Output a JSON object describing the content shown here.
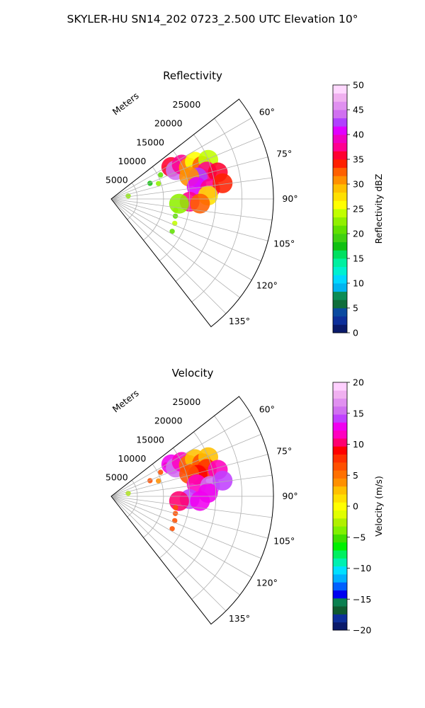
{
  "figure": {
    "title": "SKYLER-HU  SN14_202  0723_2.500 UTC Elevation 10°"
  },
  "chart_data": [
    {
      "type": "heatmap",
      "projection": "polar-sector",
      "title": "Reflectivity",
      "range_label": "Meters",
      "range_ticks": [
        5000,
        10000,
        15000,
        20000,
        25000
      ],
      "rlim": [
        0,
        31000
      ],
      "azimuth_range_deg": [
        52,
        142
      ],
      "azimuth_ticks": [
        "60°",
        "75°",
        "90°",
        "105°",
        "120°",
        "135°"
      ],
      "grid": true,
      "colorbar": {
        "label": "Reflectivity dBZ",
        "range": [
          0,
          50
        ],
        "ticks": [
          "0",
          "5",
          "10",
          "15",
          "20",
          "25",
          "30",
          "35",
          "40",
          "45",
          "50"
        ],
        "colors": [
          "#0a1a6a",
          "#0d2f9a",
          "#0a4aa0",
          "#0f6d3a",
          "#0c8c55",
          "#00b4f0",
          "#00d8ff",
          "#00f0d0",
          "#00f0a0",
          "#00e060",
          "#10c010",
          "#40d010",
          "#60e000",
          "#90f000",
          "#c0ff00",
          "#ffff00",
          "#ffe000",
          "#ffc000",
          "#ff9000",
          "#ff6000",
          "#ff2000",
          "#ff0030",
          "#ff0090",
          "#f000c0",
          "#e000ff",
          "#b040ff",
          "#d070f0",
          "#e090f0",
          "#f0b0f0",
          "#ffd8ff"
        ]
      },
      "echoes": [
        {
          "r": 12000,
          "az": 60,
          "v": 28
        },
        {
          "r": 13000,
          "az": 62,
          "v": 36
        },
        {
          "r": 13500,
          "az": 66,
          "v": 44
        },
        {
          "r": 15000,
          "az": 64,
          "v": 38
        },
        {
          "r": 16000,
          "az": 68,
          "v": 31
        },
        {
          "r": 17500,
          "az": 66,
          "v": 26
        },
        {
          "r": 18500,
          "az": 70,
          "v": 33
        },
        {
          "r": 20000,
          "az": 68,
          "v": 24
        },
        {
          "r": 19000,
          "az": 74,
          "v": 38
        },
        {
          "r": 21000,
          "az": 76,
          "v": 36
        },
        {
          "r": 17000,
          "az": 76,
          "v": 42
        },
        {
          "r": 15500,
          "az": 74,
          "v": 30
        },
        {
          "r": 16500,
          "az": 82,
          "v": 40
        },
        {
          "r": 19000,
          "az": 84,
          "v": 37
        },
        {
          "r": 21500,
          "az": 82,
          "v": 34
        },
        {
          "r": 18500,
          "az": 88,
          "v": 28
        },
        {
          "r": 15000,
          "az": 92,
          "v": 38
        },
        {
          "r": 17000,
          "az": 93,
          "v": 33
        },
        {
          "r": 13000,
          "az": 94,
          "v": 22
        },
        {
          "r": 8000,
          "az": 68,
          "v": 18
        },
        {
          "r": 9500,
          "az": 72,
          "v": 22
        },
        {
          "r": 10500,
          "az": 64,
          "v": 20
        },
        {
          "r": 3300,
          "az": 80,
          "v": 22
        },
        {
          "r": 12500,
          "az": 100,
          "v": 22
        },
        {
          "r": 12700,
          "az": 105,
          "v": 20
        },
        {
          "r": 13000,
          "az": 111,
          "v": 24
        },
        {
          "r": 13200,
          "az": 118,
          "v": 20
        }
      ]
    },
    {
      "type": "heatmap",
      "projection": "polar-sector",
      "title": "Velocity",
      "range_label": "Meters",
      "range_ticks": [
        5000,
        10000,
        15000,
        20000,
        25000
      ],
      "rlim": [
        0,
        31000
      ],
      "azimuth_range_deg": [
        52,
        142
      ],
      "azimuth_ticks": [
        "60°",
        "75°",
        "90°",
        "105°",
        "120°",
        "135°"
      ],
      "grid": true,
      "colorbar": {
        "label": "Velocity (m/s)",
        "range": [
          -20,
          20
        ],
        "ticks": [
          "−20",
          "−15",
          "−10",
          "−5",
          "0",
          "5",
          "10",
          "15",
          "20"
        ],
        "colors": [
          "#0a1a6a",
          "#0d2f9a",
          "#0f5a30",
          "#0a8050",
          "#0000f0",
          "#0060ff",
          "#00b0ff",
          "#00e0ff",
          "#00f0b0",
          "#00f060",
          "#00f000",
          "#40e000",
          "#80f000",
          "#b0f000",
          "#e0ff00",
          "#ffff00",
          "#ffe000",
          "#ffc000",
          "#ff9000",
          "#ff7000",
          "#ff5000",
          "#ff3000",
          "#ff0000",
          "#ff0070",
          "#ff00c0",
          "#f000f0",
          "#c040ff",
          "#d070f0",
          "#e090f0",
          "#f0b0f0",
          "#ffd0ff"
        ]
      },
      "echoes": [
        {
          "r": 12000,
          "az": 60,
          "v": 9
        },
        {
          "r": 13000,
          "az": 62,
          "v": 13
        },
        {
          "r": 13500,
          "az": 66,
          "v": 15
        },
        {
          "r": 15000,
          "az": 64,
          "v": 11
        },
        {
          "r": 16000,
          "az": 68,
          "v": 5
        },
        {
          "r": 17500,
          "az": 66,
          "v": 3
        },
        {
          "r": 18500,
          "az": 70,
          "v": 6
        },
        {
          "r": 20000,
          "az": 68,
          "v": 3
        },
        {
          "r": 19000,
          "az": 74,
          "v": 8
        },
        {
          "r": 21000,
          "az": 76,
          "v": 12
        },
        {
          "r": 17000,
          "az": 76,
          "v": 9
        },
        {
          "r": 15500,
          "az": 74,
          "v": 6
        },
        {
          "r": 16500,
          "az": 82,
          "v": 12
        },
        {
          "r": 19000,
          "az": 84,
          "v": 15
        },
        {
          "r": 21500,
          "az": 82,
          "v": 14
        },
        {
          "r": 18500,
          "az": 88,
          "v": 13
        },
        {
          "r": 15000,
          "az": 92,
          "v": 14
        },
        {
          "r": 17000,
          "az": 93,
          "v": 13
        },
        {
          "r": 13000,
          "az": 94,
          "v": 10
        },
        {
          "r": 8000,
          "az": 68,
          "v": 6
        },
        {
          "r": 9500,
          "az": 72,
          "v": 4
        },
        {
          "r": 10500,
          "az": 64,
          "v": 6
        },
        {
          "r": 3300,
          "az": 80,
          "v": -2
        },
        {
          "r": 12500,
          "az": 100,
          "v": 7
        },
        {
          "r": 12700,
          "az": 105,
          "v": 7
        },
        {
          "r": 13000,
          "az": 111,
          "v": 7
        },
        {
          "r": 13200,
          "az": 118,
          "v": 7
        }
      ]
    }
  ]
}
